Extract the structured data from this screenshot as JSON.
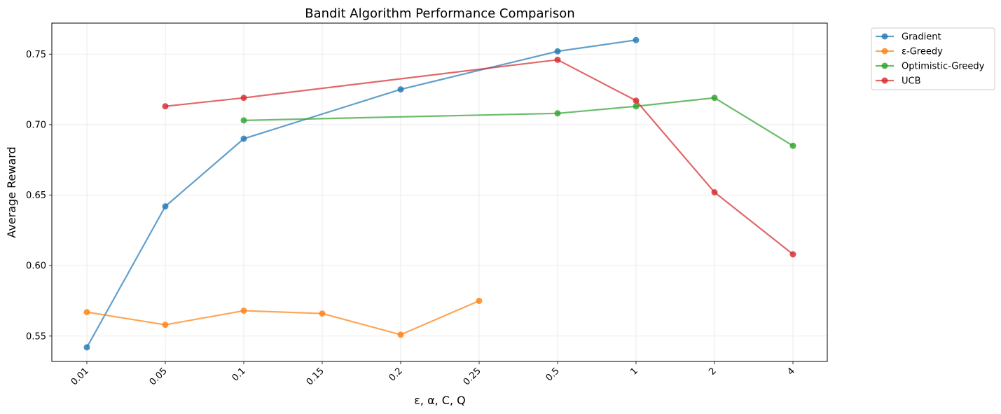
{
  "chart_data": {
    "type": "line",
    "title": "Bandit Algorithm Performance Comparison",
    "xlabel": "ε, α, C, Q",
    "ylabel": "Average Reward",
    "categories": [
      "0.01",
      "0.05",
      "0.1",
      "0.15",
      "0.2",
      "0.25",
      "0.5",
      "1",
      "2",
      "4"
    ],
    "ylim": [
      0.532,
      0.772
    ],
    "yticks": [
      "0.55",
      "0.60",
      "0.65",
      "0.70",
      "0.75"
    ],
    "grid": true,
    "legend_position": "outside top-right",
    "series": [
      {
        "name": "Gradient",
        "color": "#1f77b4",
        "values": [
          0.542,
          0.642,
          0.69,
          null,
          0.725,
          null,
          0.752,
          0.76,
          null,
          null
        ]
      },
      {
        "name": "ε-Greedy",
        "color": "#ff7f0e",
        "values": [
          0.567,
          0.558,
          0.568,
          0.566,
          0.551,
          0.575,
          null,
          null,
          null,
          null
        ]
      },
      {
        "name": "Optimistic-Greedy",
        "color": "#2ca02c",
        "values": [
          null,
          null,
          0.703,
          null,
          null,
          null,
          0.708,
          0.713,
          0.719,
          0.685
        ]
      },
      {
        "name": "UCB",
        "color": "#d62728",
        "values": [
          null,
          0.713,
          0.719,
          null,
          null,
          null,
          0.746,
          0.717,
          0.652,
          0.608
        ]
      }
    ]
  }
}
